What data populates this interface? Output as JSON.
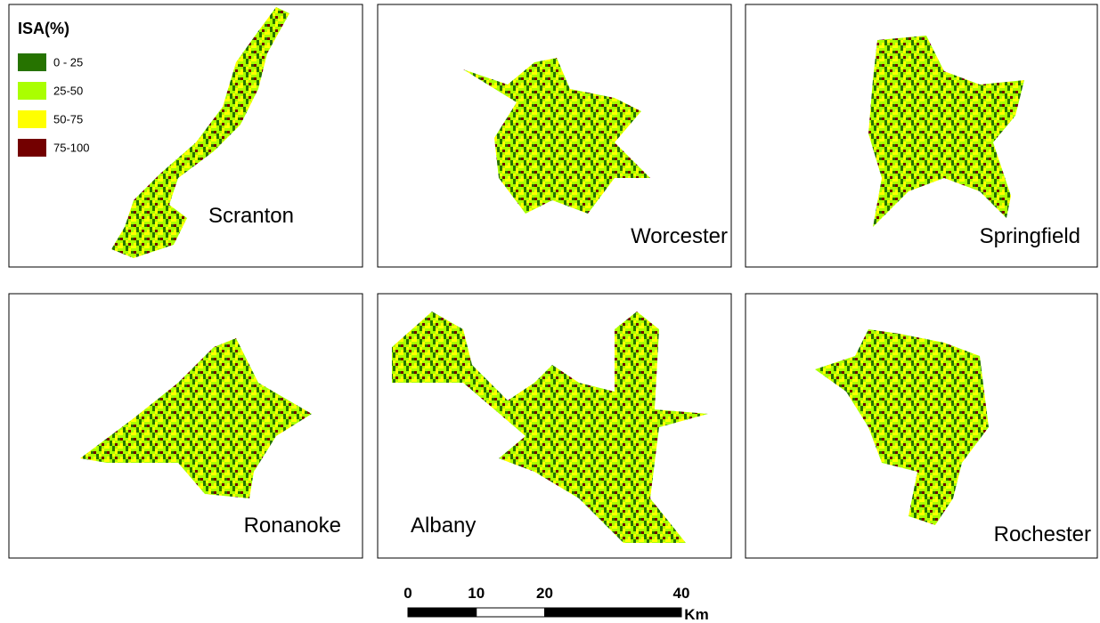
{
  "legend": {
    "title": "ISA(%)",
    "items": [
      {
        "label": "0 - 25",
        "color": "#267300"
      },
      {
        "label": "25-50",
        "color": "#aaff00"
      },
      {
        "label": "50-75",
        "color": "#ffff00"
      },
      {
        "label": "75-100",
        "color": "#730000"
      }
    ]
  },
  "panels": [
    {
      "name": "Scranton"
    },
    {
      "name": "Worcester"
    },
    {
      "name": "Springfield"
    },
    {
      "name": "Ronanoke"
    },
    {
      "name": "Albany"
    },
    {
      "name": "Rochester"
    }
  ],
  "scale_bar": {
    "ticks": [
      0,
      10,
      20,
      40
    ],
    "unit": "Km"
  }
}
